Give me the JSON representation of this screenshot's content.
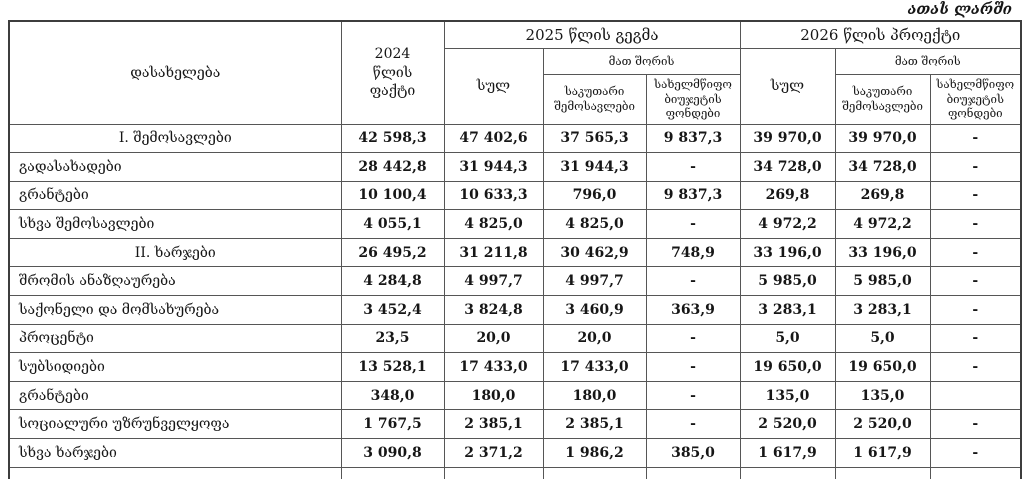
{
  "note": "ათას ლარში",
  "table": {
    "header": {
      "name_col": "დასახელება",
      "fact_2024": "2024\nწლის\nფაქტი",
      "plan_2025": "2025 წლის გეგმა",
      "project_2026": "2026 წლის პროექტი",
      "total": "სულ",
      "among_them": "მათ შორის",
      "own_revenues": "საკუთარი\nშემოსავლები",
      "state_budget_funds": "სახელმწიფო\nბიუჯეტის\nფონდები"
    },
    "rows": [
      {
        "label": "I. შემოსავლები",
        "section": true,
        "values": [
          "42 598,3",
          "47 402,6",
          "37 565,3",
          "9 837,3",
          "39 970,0",
          "39 970,0",
          "-"
        ]
      },
      {
        "label": "გადასახადები",
        "section": false,
        "values": [
          "28 442,8",
          "31 944,3",
          "31 944,3",
          "-",
          "34 728,0",
          "34 728,0",
          "-"
        ]
      },
      {
        "label": "გრანტები",
        "section": false,
        "values": [
          "10 100,4",
          "10 633,3",
          "796,0",
          "9 837,3",
          "269,8",
          "269,8",
          "-"
        ]
      },
      {
        "label": "სხვა  შემოსავლები",
        "section": false,
        "values": [
          "4 055,1",
          "4 825,0",
          "4 825,0",
          "-",
          "4 972,2",
          "4 972,2",
          "-"
        ]
      },
      {
        "label": "II. ხარჯები",
        "section": true,
        "values": [
          "26 495,2",
          "31 211,8",
          "30 462,9",
          "748,9",
          "33 196,0",
          "33 196,0",
          "-"
        ]
      },
      {
        "label": "შრომის ანაზღაურება",
        "section": false,
        "values": [
          "4 284,8",
          "4 997,7",
          "4 997,7",
          "-",
          "5 985,0",
          "5 985,0",
          "-"
        ]
      },
      {
        "label": "საქონელი და მომსახურება",
        "section": false,
        "values": [
          "3 452,4",
          "3 824,8",
          "3 460,9",
          "363,9",
          "3 283,1",
          "3 283,1",
          "-"
        ]
      },
      {
        "label": "პროცენტი",
        "section": false,
        "values": [
          "23,5",
          "20,0",
          "20,0",
          "-",
          "5,0",
          "5,0",
          "-"
        ]
      },
      {
        "label": "სუბსიდიები",
        "section": false,
        "values": [
          "13 528,1",
          "17 433,0",
          "17 433,0",
          "-",
          "19 650,0",
          "19 650,0",
          "-"
        ]
      },
      {
        "label": "გრანტები",
        "section": false,
        "values": [
          "348,0",
          "180,0",
          "180,0",
          "-",
          "135,0",
          "135,0",
          ""
        ]
      },
      {
        "label": "სოციალური უზრუნველყოფა",
        "section": false,
        "values": [
          "1 767,5",
          "2 385,1",
          "2 385,1",
          "-",
          "2 520,0",
          "2 520,0",
          "-"
        ]
      },
      {
        "label": "სხვა ხარჯები",
        "section": false,
        "values": [
          "3 090,8",
          "2 371,2",
          "1 986,2",
          "385,0",
          "1 617,9",
          "1 617,9",
          "-"
        ]
      }
    ]
  }
}
